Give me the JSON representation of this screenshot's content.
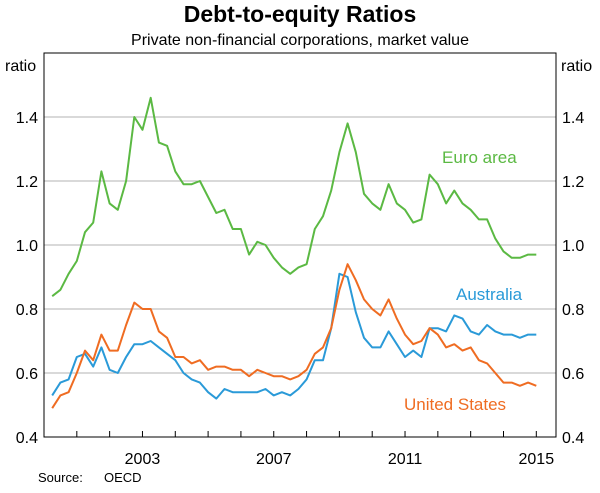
{
  "chart_data": {
    "type": "line",
    "title": "Debt-to-equity Ratios",
    "subtitle": "Private non-financial corporations, market value",
    "ylabel_left": "ratio",
    "ylabel_right": "ratio",
    "ylim": [
      0.4,
      1.6
    ],
    "yticks": [
      0.4,
      0.6,
      0.8,
      1.0,
      1.2,
      1.4
    ],
    "ytick_labels": [
      "0.4",
      "0.6",
      "0.8",
      "1.0",
      "1.2",
      "1.4"
    ],
    "xlim": [
      2000.0,
      2015.6
    ],
    "xticks": [
      2003,
      2007,
      2011,
      2015
    ],
    "xtick_labels": [
      "2003",
      "2007",
      "2011",
      "2015"
    ],
    "grid": true,
    "series": [
      {
        "name": "Euro area",
        "color": "#5bb943",
        "x": [
          2000.25,
          2000.5,
          2000.75,
          2001.0,
          2001.25,
          2001.5,
          2001.75,
          2002.0,
          2002.25,
          2002.5,
          2002.75,
          2003.0,
          2003.25,
          2003.5,
          2003.75,
          2004.0,
          2004.25,
          2004.5,
          2004.75,
          2005.0,
          2005.25,
          2005.5,
          2005.75,
          2006.0,
          2006.25,
          2006.5,
          2006.75,
          2007.0,
          2007.25,
          2007.5,
          2007.75,
          2008.0,
          2008.25,
          2008.5,
          2008.75,
          2009.0,
          2009.25,
          2009.5,
          2009.75,
          2010.0,
          2010.25,
          2010.5,
          2010.75,
          2011.0,
          2011.25,
          2011.5,
          2011.75,
          2012.0,
          2012.25,
          2012.5,
          2012.75,
          2013.0,
          2013.25,
          2013.5,
          2013.75,
          2014.0,
          2014.25,
          2014.5,
          2014.75,
          2015.0
        ],
        "values": [
          0.84,
          0.86,
          0.91,
          0.95,
          1.04,
          1.07,
          1.23,
          1.13,
          1.11,
          1.2,
          1.4,
          1.36,
          1.46,
          1.32,
          1.31,
          1.23,
          1.19,
          1.19,
          1.2,
          1.15,
          1.1,
          1.11,
          1.05,
          1.05,
          0.97,
          1.01,
          1.0,
          0.96,
          0.93,
          0.91,
          0.93,
          0.94,
          1.05,
          1.09,
          1.17,
          1.29,
          1.38,
          1.29,
          1.16,
          1.13,
          1.11,
          1.19,
          1.13,
          1.11,
          1.07,
          1.08,
          1.22,
          1.19,
          1.13,
          1.17,
          1.13,
          1.11,
          1.08,
          1.08,
          1.02,
          0.98,
          0.96,
          0.96,
          0.97,
          0.97
        ]
      },
      {
        "name": "Australia",
        "color": "#2a9ad8",
        "x": [
          2000.25,
          2000.5,
          2000.75,
          2001.0,
          2001.25,
          2001.5,
          2001.75,
          2002.0,
          2002.25,
          2002.5,
          2002.75,
          2003.0,
          2003.25,
          2003.5,
          2003.75,
          2004.0,
          2004.25,
          2004.5,
          2004.75,
          2005.0,
          2005.25,
          2005.5,
          2005.75,
          2006.0,
          2006.25,
          2006.5,
          2006.75,
          2007.0,
          2007.25,
          2007.5,
          2007.75,
          2008.0,
          2008.25,
          2008.5,
          2008.75,
          2009.0,
          2009.25,
          2009.5,
          2009.75,
          2010.0,
          2010.25,
          2010.5,
          2010.75,
          2011.0,
          2011.25,
          2011.5,
          2011.75,
          2012.0,
          2012.25,
          2012.5,
          2012.75,
          2013.0,
          2013.25,
          2013.5,
          2013.75,
          2014.0,
          2014.25,
          2014.5,
          2014.75,
          2015.0
        ],
        "values": [
          0.53,
          0.57,
          0.58,
          0.65,
          0.66,
          0.62,
          0.68,
          0.61,
          0.6,
          0.65,
          0.69,
          0.69,
          0.7,
          0.68,
          0.66,
          0.64,
          0.6,
          0.58,
          0.57,
          0.54,
          0.52,
          0.55,
          0.54,
          0.54,
          0.54,
          0.54,
          0.55,
          0.53,
          0.54,
          0.53,
          0.55,
          0.58,
          0.64,
          0.64,
          0.74,
          0.91,
          0.9,
          0.79,
          0.71,
          0.68,
          0.68,
          0.73,
          0.69,
          0.65,
          0.67,
          0.65,
          0.74,
          0.74,
          0.73,
          0.78,
          0.77,
          0.73,
          0.72,
          0.75,
          0.73,
          0.72,
          0.72,
          0.71,
          0.72,
          0.72
        ]
      },
      {
        "name": "United States",
        "color": "#ef6c22",
        "x": [
          2000.25,
          2000.5,
          2000.75,
          2001.0,
          2001.25,
          2001.5,
          2001.75,
          2002.0,
          2002.25,
          2002.5,
          2002.75,
          2003.0,
          2003.25,
          2003.5,
          2003.75,
          2004.0,
          2004.25,
          2004.5,
          2004.75,
          2005.0,
          2005.25,
          2005.5,
          2005.75,
          2006.0,
          2006.25,
          2006.5,
          2006.75,
          2007.0,
          2007.25,
          2007.5,
          2007.75,
          2008.0,
          2008.25,
          2008.5,
          2008.75,
          2009.0,
          2009.25,
          2009.5,
          2009.75,
          2010.0,
          2010.25,
          2010.5,
          2010.75,
          2011.0,
          2011.25,
          2011.5,
          2011.75,
          2012.0,
          2012.25,
          2012.5,
          2012.75,
          2013.0,
          2013.25,
          2013.5,
          2013.75,
          2014.0,
          2014.25,
          2014.5,
          2014.75,
          2015.0
        ],
        "values": [
          0.49,
          0.53,
          0.54,
          0.6,
          0.67,
          0.64,
          0.72,
          0.67,
          0.67,
          0.75,
          0.82,
          0.8,
          0.8,
          0.73,
          0.71,
          0.65,
          0.65,
          0.63,
          0.64,
          0.61,
          0.62,
          0.62,
          0.61,
          0.61,
          0.59,
          0.61,
          0.6,
          0.59,
          0.59,
          0.58,
          0.59,
          0.61,
          0.66,
          0.68,
          0.74,
          0.86,
          0.94,
          0.89,
          0.83,
          0.8,
          0.78,
          0.83,
          0.77,
          0.72,
          0.69,
          0.7,
          0.74,
          0.72,
          0.68,
          0.69,
          0.67,
          0.68,
          0.64,
          0.63,
          0.6,
          0.57,
          0.57,
          0.56,
          0.57,
          0.56
        ]
      }
    ]
  },
  "source_label": "Source:",
  "source_value": "OECD"
}
